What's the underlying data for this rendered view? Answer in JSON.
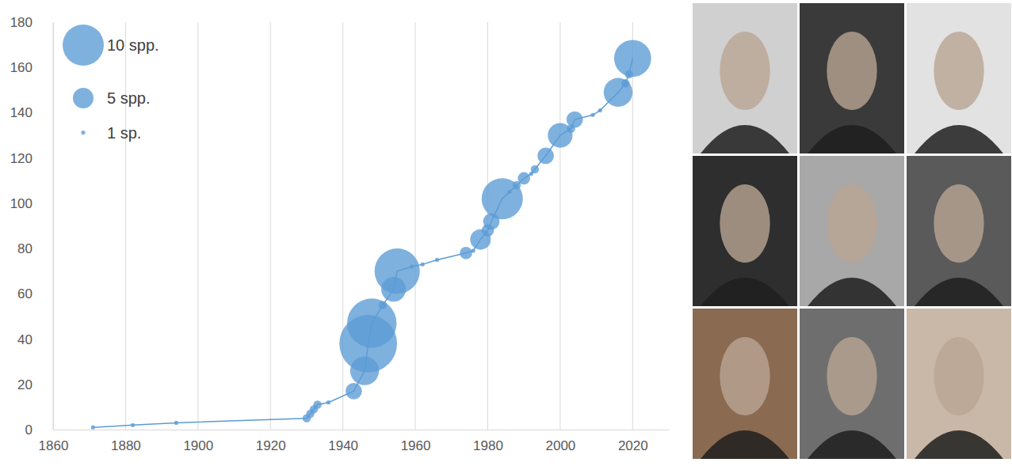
{
  "chart_data": {
    "type": "scatter",
    "marker": "circle",
    "line_style": "solid",
    "color": "#5b9bd5",
    "grid": "x",
    "xlim": [
      1860,
      2030
    ],
    "xticks": [
      1860,
      1880,
      1900,
      1920,
      1940,
      1960,
      1980,
      2000,
      2020
    ],
    "ylim": [
      0,
      180
    ],
    "yticks": [
      0,
      20,
      40,
      60,
      80,
      100,
      120,
      140,
      160,
      180
    ],
    "x": [
      1871,
      1882,
      1894,
      1930,
      1931,
      1932,
      1933,
      1936,
      1943,
      1946,
      1947,
      1948,
      1951,
      1954,
      1955,
      1959,
      1962,
      1966,
      1974,
      1976,
      1978,
      1980,
      1981,
      1984,
      1986,
      1988,
      1990,
      1992,
      1993,
      1996,
      2000,
      2003,
      2004,
      2009,
      2011,
      2016,
      2018,
      2019,
      2020
    ],
    "values": [
      1,
      2,
      3,
      5,
      7,
      9,
      11,
      12,
      17,
      26,
      38,
      47,
      55,
      62,
      70,
      72,
      73,
      75,
      78,
      79,
      84,
      88,
      92,
      102,
      105,
      108,
      111,
      113,
      115,
      121,
      130,
      133,
      137,
      139,
      141,
      149,
      153,
      157,
      164
    ],
    "sizes": [
      1,
      1,
      1,
      2,
      2,
      2,
      2,
      1,
      4,
      7,
      14,
      12,
      2,
      6,
      11,
      1,
      1,
      1,
      3,
      1,
      5,
      3,
      4,
      10,
      1,
      2,
      3,
      1,
      2,
      4,
      6,
      2,
      4,
      1,
      1,
      7,
      2,
      2,
      9
    ],
    "size_legend": [
      {
        "label": "10 spp.",
        "size": 10
      },
      {
        "label": "5 spp.",
        "size": 5
      },
      {
        "label": "1 sp.",
        "size": 1
      }
    ]
  }
}
